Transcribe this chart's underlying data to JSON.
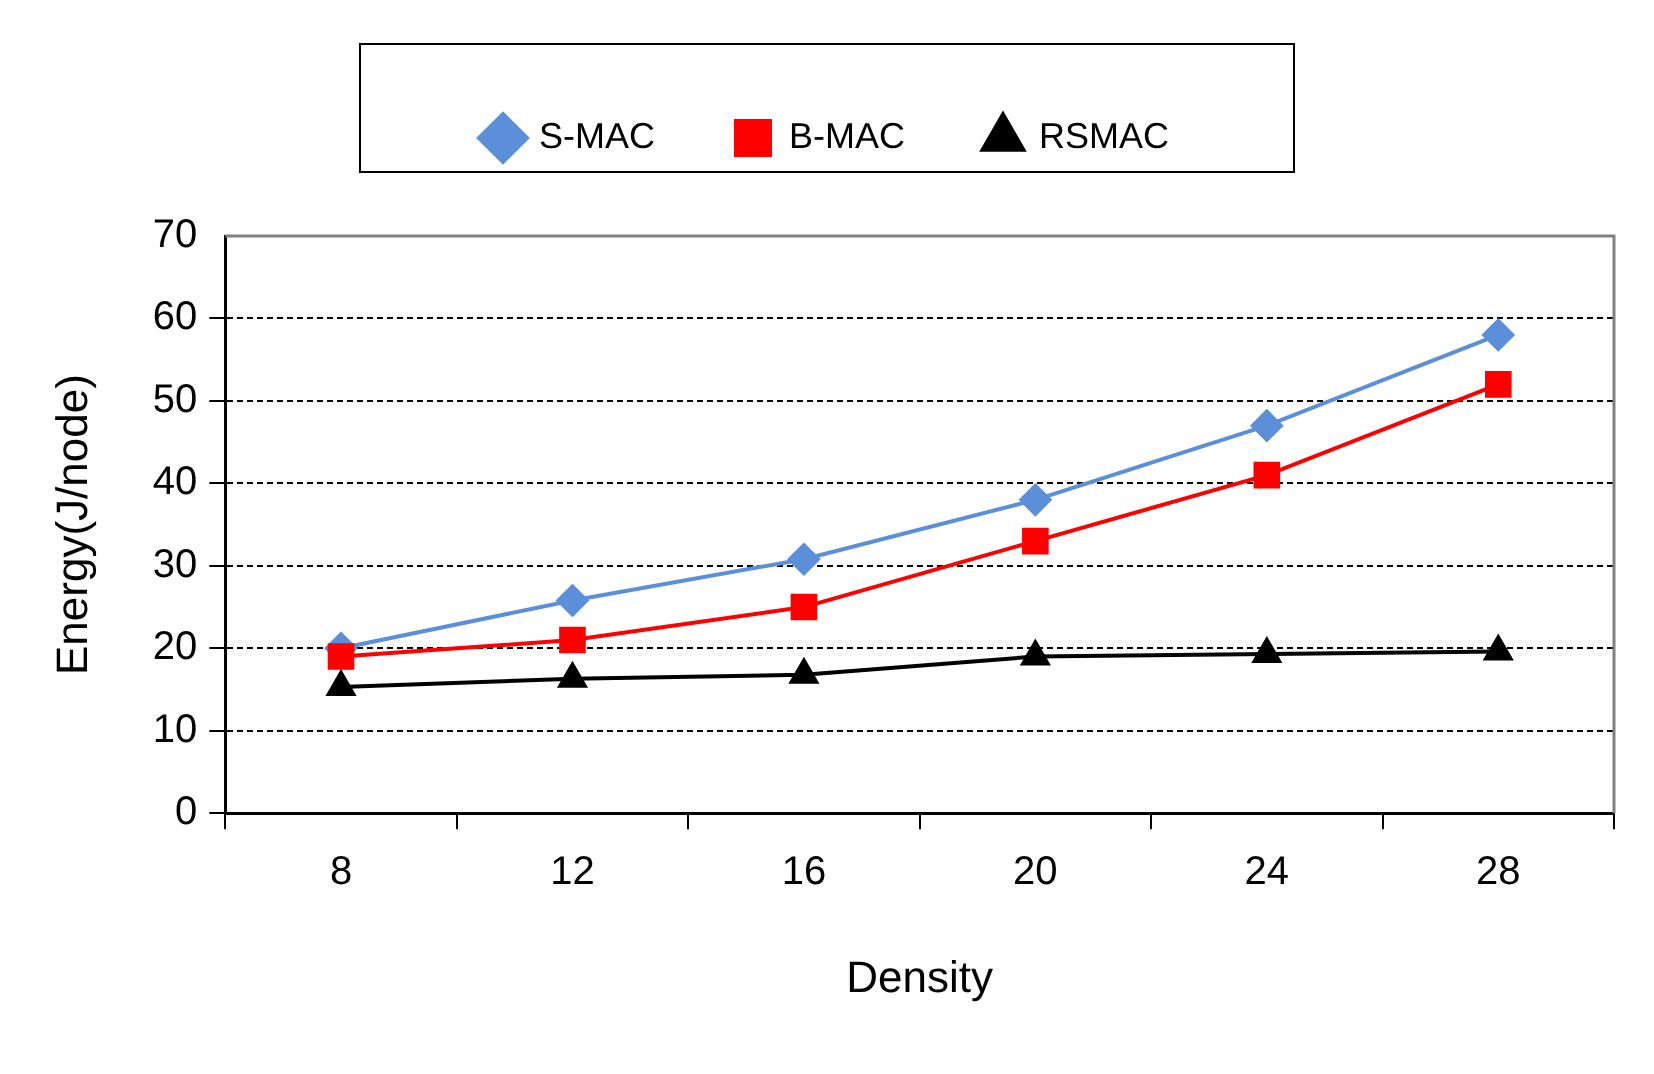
{
  "chart_data": {
    "type": "line",
    "xlabel": "Density",
    "ylabel": "Energy(J/node)",
    "categories": [
      "8",
      "12",
      "16",
      "20",
      "24",
      "28"
    ],
    "series": [
      {
        "name": "S-MAC",
        "color": "#5b8fd9",
        "marker": "diamond",
        "values": [
          20,
          25.8,
          30.8,
          38,
          47,
          58
        ]
      },
      {
        "name": "B-MAC",
        "color": "#ff0000",
        "marker": "square",
        "values": [
          19,
          21,
          25,
          33,
          41,
          52
        ]
      },
      {
        "name": "RSMAC",
        "color": "#000000",
        "marker": "triangle",
        "values": [
          15.3,
          16.3,
          16.8,
          19,
          19.3,
          19.6
        ]
      }
    ],
    "ylim": [
      0,
      70
    ],
    "yticks": [
      0,
      10,
      20,
      30,
      40,
      50,
      60,
      70
    ],
    "grid": "y",
    "legend": "top",
    "line_style": "solid"
  }
}
